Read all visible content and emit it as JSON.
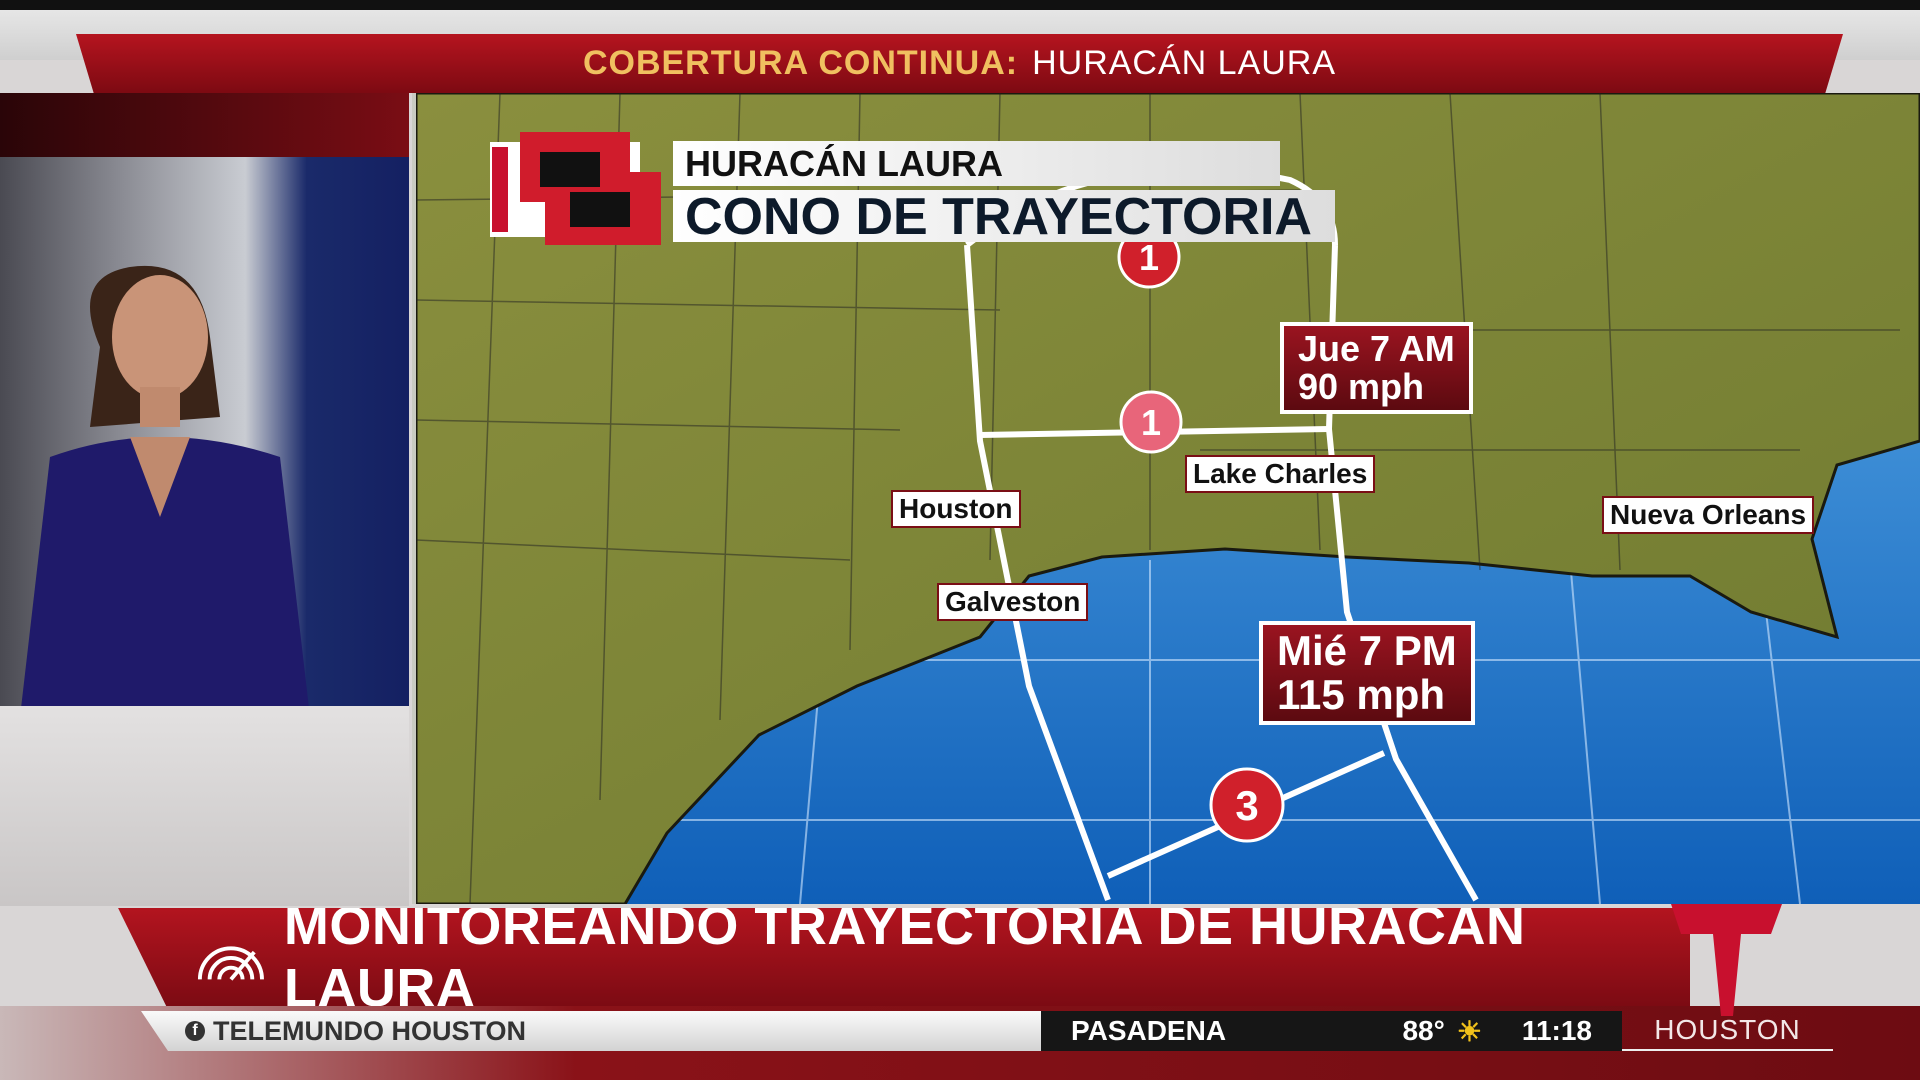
{
  "top_banner": {
    "kicker": "COBERTURA CONTINUA:",
    "topic": "HURACÁN LAURA"
  },
  "graphic": {
    "title": "HURACÁN LAURA",
    "subtitle": "CONO DE TRAYECTORIA"
  },
  "map": {
    "cities": [
      "Houston",
      "Galveston",
      "Lake Charles",
      "Nueva Orleans"
    ],
    "forecast_points": [
      {
        "category": "1"
      },
      {
        "category": "1",
        "time": "Jue 7 AM",
        "wind": "90 mph"
      },
      {
        "category": "3",
        "time": "Mié 7 PM",
        "wind": "115 mph"
      }
    ],
    "colors": {
      "land": "#7f8a3a",
      "water": "#1f7fd0",
      "cone": "#ffffff",
      "hurricane": "#d0202b"
    }
  },
  "headline": {
    "icon": "radar-icon",
    "text": "MONITOREANDO TRAYECTORIA DE HURACÁN LAURA"
  },
  "ticker": {
    "social": "TELEMUNDO HOUSTON",
    "city": "PASADENA",
    "temp": "88°",
    "weather_icon": "partly-sunny-icon",
    "time": "11:18",
    "station": "HOUSTON"
  },
  "brand": {
    "color": "#c8102e"
  }
}
